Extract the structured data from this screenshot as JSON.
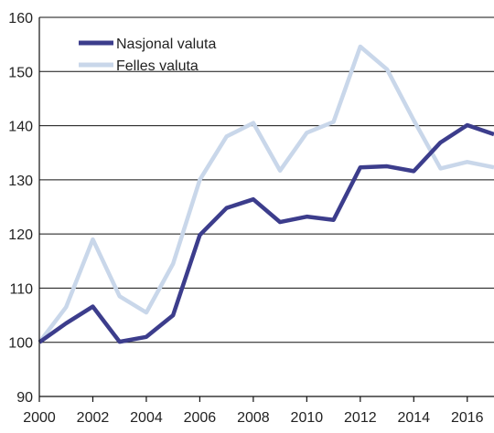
{
  "chart_data": {
    "type": "line",
    "title": "",
    "xlabel": "",
    "ylabel": "",
    "x": [
      2000,
      2001,
      2002,
      2003,
      2004,
      2005,
      2006,
      2007,
      2008,
      2009,
      2010,
      2011,
      2012,
      2013,
      2014,
      2015,
      2016,
      2017
    ],
    "xlim": [
      2000,
      2017
    ],
    "ylim": [
      90,
      160
    ],
    "x_ticks": [
      "2000",
      "2002",
      "2004",
      "2006",
      "2008",
      "2010",
      "2012",
      "2014",
      "2016"
    ],
    "y_ticks": [
      "90",
      "100",
      "110",
      "120",
      "130",
      "140",
      "150",
      "160"
    ],
    "grid": "horizontal",
    "legend_position": "top-left",
    "series": [
      {
        "name": "Nasjonal valuta",
        "color": "#3c3d8c",
        "values": [
          100,
          103.5,
          106.6,
          100.1,
          101,
          105,
          119.8,
          124.8,
          126.4,
          122.2,
          123.2,
          122.6,
          132.3,
          132.5,
          131.6,
          136.9,
          140.1,
          138.4
        ]
      },
      {
        "name": "Felles valuta",
        "color": "#c9d7ea",
        "values": [
          100,
          106.5,
          119,
          108.5,
          105.5,
          114.5,
          130,
          138,
          140.5,
          131.7,
          138.7,
          140.7,
          154.6,
          150.4,
          141,
          132.1,
          133.3,
          132.3
        ]
      }
    ]
  }
}
